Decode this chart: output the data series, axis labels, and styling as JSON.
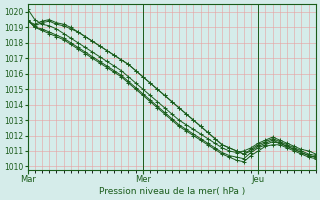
{
  "title": "",
  "xlabel": "Pression niveau de la mer( hPa )",
  "ylim": [
    1009.8,
    1020.5
  ],
  "yticks": [
    1010,
    1011,
    1012,
    1013,
    1014,
    1015,
    1016,
    1017,
    1018,
    1019,
    1020
  ],
  "xtick_labels": [
    "Mar",
    "Mer",
    "Jeu"
  ],
  "xtick_positions": [
    0,
    48,
    96
  ],
  "xlim": [
    0,
    120
  ],
  "bg_color": "#d5ecea",
  "plot_bg_color": "#d5ecea",
  "grid_color": "#e8a0a0",
  "line_color": "#1a5c1a",
  "marker_color": "#1a5c1a",
  "vline_color": "#1a5c1a",
  "series": [
    [
      1020.2,
      1019.5,
      1019.2,
      1019.1,
      1018.9,
      1018.6,
      1018.3,
      1018.0,
      1017.7,
      1017.4,
      1017.1,
      1016.8,
      1016.5,
      1016.2,
      1015.8,
      1015.4,
      1015.0,
      1014.6,
      1014.2,
      1013.8,
      1013.4,
      1013.0,
      1012.7,
      1012.4,
      1012.1,
      1011.8,
      1011.5,
      1011.2,
      1011.0,
      1010.9,
      1011.0,
      1011.2,
      1011.5,
      1011.7,
      1011.9,
      1011.7,
      1011.5,
      1011.3,
      1011.1,
      1011.0,
      1010.8
    ],
    [
      1019.5,
      1019.0,
      1018.9,
      1018.7,
      1018.5,
      1018.3,
      1018.0,
      1017.7,
      1017.4,
      1017.1,
      1016.8,
      1016.5,
      1016.2,
      1015.9,
      1015.5,
      1015.1,
      1014.7,
      1014.3,
      1013.9,
      1013.5,
      1013.1,
      1012.7,
      1012.4,
      1012.1,
      1011.8,
      1011.5,
      1011.2,
      1010.9,
      1010.7,
      1010.6,
      1010.5,
      1010.9,
      1011.2,
      1011.4,
      1011.6,
      1011.5,
      1011.3,
      1011.1,
      1010.9,
      1010.7,
      1010.6
    ],
    [
      1019.5,
      1019.0,
      1018.8,
      1018.6,
      1018.4,
      1018.2,
      1017.9,
      1017.6,
      1017.3,
      1017.0,
      1016.7,
      1016.4,
      1016.1,
      1015.8,
      1015.4,
      1015.0,
      1014.6,
      1014.2,
      1013.8,
      1013.4,
      1013.0,
      1012.6,
      1012.3,
      1012.0,
      1011.7,
      1011.4,
      1011.1,
      1010.8,
      1010.6,
      1010.4,
      1010.3,
      1010.7,
      1011.0,
      1011.3,
      1011.4,
      1011.4,
      1011.2,
      1011.0,
      1010.8,
      1010.6,
      1010.5
    ],
    [
      1019.4,
      1019.2,
      1019.4,
      1019.5,
      1019.3,
      1019.2,
      1019.0,
      1018.7,
      1018.4,
      1018.1,
      1017.8,
      1017.5,
      1017.2,
      1016.9,
      1016.6,
      1016.2,
      1015.8,
      1015.4,
      1015.0,
      1014.6,
      1014.2,
      1013.8,
      1013.4,
      1013.0,
      1012.6,
      1012.2,
      1011.8,
      1011.4,
      1011.2,
      1011.0,
      1010.8,
      1011.1,
      1011.4,
      1011.6,
      1011.8,
      1011.6,
      1011.4,
      1011.2,
      1011.0,
      1010.8,
      1010.7
    ],
    [
      1019.4,
      1019.1,
      1019.3,
      1019.4,
      1019.2,
      1019.1,
      1018.9,
      1018.7,
      1018.4,
      1018.1,
      1017.8,
      1017.5,
      1017.2,
      1016.9,
      1016.6,
      1016.2,
      1015.8,
      1015.4,
      1015.0,
      1014.6,
      1014.2,
      1013.8,
      1013.4,
      1013.0,
      1012.6,
      1012.2,
      1011.8,
      1011.4,
      1011.2,
      1011.0,
      1010.8,
      1011.0,
      1011.3,
      1011.5,
      1011.7,
      1011.5,
      1011.3,
      1011.1,
      1010.9,
      1010.7,
      1010.6
    ]
  ],
  "x_step": 3
}
